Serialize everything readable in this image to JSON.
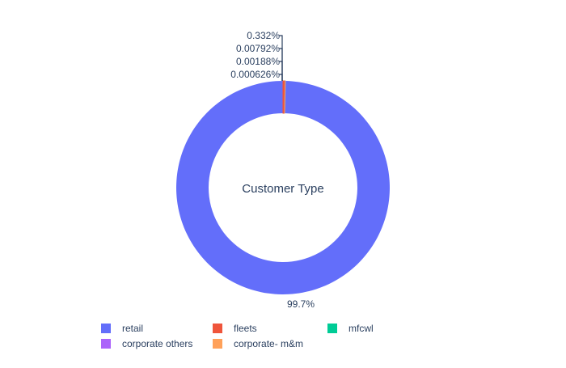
{
  "chart_data": {
    "type": "pie",
    "hole": true,
    "center_label": "Customer Type",
    "categories": [
      "retail",
      "fleets",
      "mfcwl",
      "corporate others",
      "corporate- m&m"
    ],
    "values": [
      99.7,
      0.332,
      0.00792,
      0.00188,
      0.000626
    ],
    "labels": [
      "99.7%",
      "0.332%",
      "0.00792%",
      "0.00188%",
      "0.000626%"
    ],
    "colors": [
      "#636efa",
      "#ef553b",
      "#00cc96",
      "#ab63fa",
      "#ffa15a"
    ],
    "legend_position": "bottom",
    "legend": [
      "retail",
      "fleets",
      "mfcwl",
      "corporate others",
      "corporate- m&m"
    ]
  }
}
